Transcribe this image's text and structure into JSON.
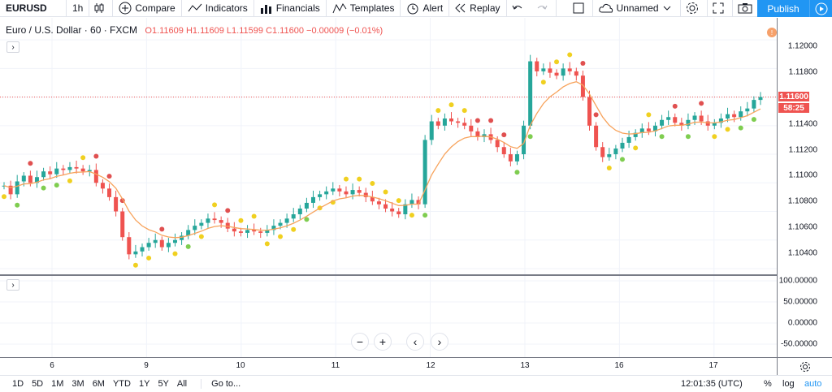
{
  "toolbar": {
    "symbol": "EURUSD",
    "interval": "1h",
    "compare": "Compare",
    "indicators": "Indicators",
    "financials": "Financials",
    "templates": "Templates",
    "alert": "Alert",
    "replay": "Replay",
    "layout_name": "Unnamed",
    "publish": "Publish"
  },
  "legend": {
    "title": "Euro / U.S. Dollar · 60 · FXCM",
    "open": "O1.11609",
    "high": "H1.11609",
    "low": "L1.11599",
    "close": "C1.11600",
    "change": "−0.00009 (−0.01%)"
  },
  "price_axis": {
    "labels": [
      "1.12000",
      "1.11800",
      "1.11600",
      "1.11400",
      "1.11200",
      "1.11000",
      "1.10800",
      "1.10600",
      "1.10400"
    ],
    "current_price": "1.11600",
    "countdown": "58:25"
  },
  "indicator_axis": {
    "labels": [
      "100.00000",
      "50.00000",
      "0.00000",
      "-50.00000"
    ]
  },
  "time_axis": {
    "labels": [
      "6",
      "9",
      "10",
      "11",
      "12",
      "13",
      "16",
      "17"
    ]
  },
  "bottombar": {
    "ranges": [
      "1D",
      "5D",
      "1M",
      "3M",
      "6M",
      "YTD",
      "1Y",
      "5Y",
      "All"
    ],
    "goto": "Go to...",
    "clock": "12:01:35 (UTC)",
    "percent": "%",
    "log": "log",
    "auto": "auto"
  },
  "nav": {
    "zoom_out": "−",
    "zoom_in": "+",
    "scroll_left": "‹",
    "scroll_right": "›"
  },
  "colors": {
    "up": "#26a69a",
    "down": "#ef5350",
    "ma": "#f7a35c",
    "dot_red": "#e05050",
    "dot_yellow": "#f0d020",
    "dot_green": "#7fcd50",
    "accent": "#2196f3"
  },
  "chart_data": {
    "type": "candlestick",
    "series": [
      {
        "name": "EURUSD",
        "values": [
          1.1098,
          1.1092,
          1.1101,
          1.1105,
          1.11,
          1.1104,
          1.1108,
          1.1106,
          1.111,
          1.1109,
          1.1111,
          1.111,
          1.1108,
          1.1109,
          1.11,
          1.1096,
          1.109,
          1.108,
          1.1062,
          1.105,
          1.1052,
          1.1055,
          1.1058,
          1.106,
          1.1055,
          1.1058,
          1.106,
          1.1063,
          1.1067,
          1.107,
          1.1072,
          1.1075,
          1.1074,
          1.1072,
          1.1068,
          1.1066,
          1.1065,
          1.1067,
          1.1066,
          1.1065,
          1.1067,
          1.107,
          1.1072,
          1.1075,
          1.1078,
          1.1082,
          1.1086,
          1.109,
          1.1092,
          1.1094,
          1.1096,
          1.1094,
          1.1092,
          1.1095,
          1.1093,
          1.109,
          1.1087,
          1.1085,
          1.1082,
          1.108,
          1.1078,
          1.1085,
          1.1088,
          1.1085,
          1.113,
          1.1143,
          1.114,
          1.1145,
          1.1143,
          1.1142,
          1.114,
          1.1136,
          1.1132,
          1.1134,
          1.113,
          1.1125,
          1.112,
          1.1115,
          1.112,
          1.114,
          1.1185,
          1.1178,
          1.118,
          1.1177,
          1.1175,
          1.118,
          1.1178,
          1.1175,
          1.116,
          1.114,
          1.1125,
          1.1118,
          1.112,
          1.1124,
          1.1128,
          1.1132,
          1.1135,
          1.1138,
          1.1136,
          1.114,
          1.1144,
          1.1146,
          1.1142,
          1.114,
          1.1144,
          1.1147,
          1.1143,
          1.114,
          1.1142,
          1.1145,
          1.1148,
          1.1146,
          1.115,
          1.1152,
          1.1158,
          1.116
        ]
      }
    ],
    "ylim": [
      1.1036,
      1.1212
    ]
  }
}
